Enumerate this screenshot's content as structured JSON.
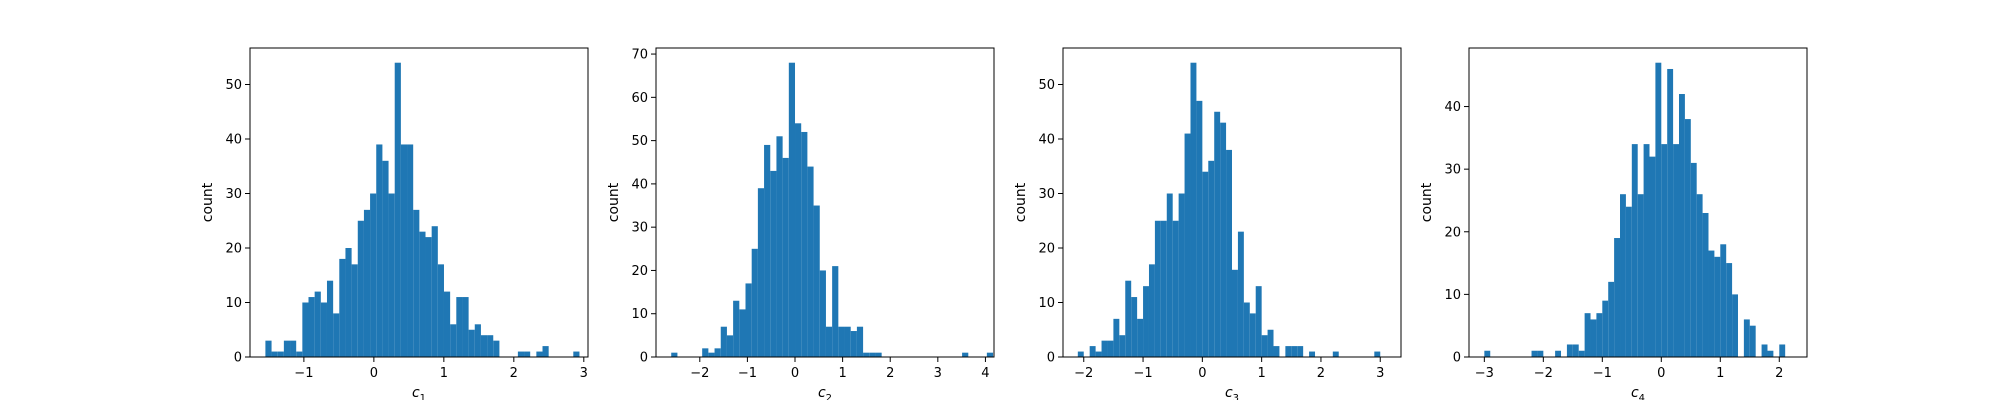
{
  "chart_data": [
    {
      "type": "bar",
      "title": "",
      "xlabel": "c",
      "xlabel_sub": "1",
      "ylabel": "count",
      "xlim": [
        -1.77,
        3.06
      ],
      "ylim": [
        0,
        56.7
      ],
      "xticks": [
        -1,
        0,
        1,
        2,
        3
      ],
      "yticks": [
        0,
        10,
        20,
        30,
        40,
        50
      ],
      "xtick_labels": [
        "−1",
        "0",
        "1",
        "2",
        "3"
      ],
      "ytick_labels": [
        "0",
        "10",
        "20",
        "30",
        "40",
        "50"
      ],
      "bins_start": -1.55,
      "bin_width": 0.088,
      "counts": [
        3,
        1,
        1,
        3,
        3,
        1,
        10,
        11,
        12,
        10,
        14,
        8,
        18,
        20,
        17,
        25,
        27,
        30,
        39,
        36,
        30,
        54,
        39,
        39,
        27,
        23,
        22,
        24,
        17,
        12,
        6,
        11,
        11,
        5,
        6,
        4,
        4,
        3,
        0,
        0,
        0,
        1,
        1,
        0,
        1,
        2,
        0,
        0,
        0,
        0,
        1
      ]
    },
    {
      "type": "bar",
      "title": "",
      "xlabel": "c",
      "xlabel_sub": "2",
      "ylabel": "count",
      "xlim": [
        -2.92,
        4.18
      ],
      "ylim": [
        0,
        71.4
      ],
      "xticks": [
        -2,
        -1,
        0,
        1,
        2,
        3,
        4
      ],
      "yticks": [
        0,
        10,
        20,
        30,
        40,
        50,
        60,
        70
      ],
      "xtick_labels": [
        "−2",
        "−1",
        "0",
        "1",
        "2",
        "3",
        "4"
      ],
      "ytick_labels": [
        "0",
        "10",
        "20",
        "30",
        "40",
        "50",
        "60",
        "70"
      ],
      "bins_start": -2.6,
      "bin_width": 0.13,
      "counts": [
        1,
        0,
        0,
        0,
        0,
        2,
        1,
        2,
        7,
        5,
        13,
        11,
        17,
        25,
        39,
        49,
        43,
        51,
        46,
        68,
        54,
        52,
        44,
        35,
        20,
        7,
        21,
        7,
        7,
        6,
        7,
        1,
        1,
        1,
        0,
        0,
        0,
        0,
        0,
        0,
        0,
        0,
        0,
        0,
        0,
        0,
        0,
        1,
        0,
        0,
        0,
        1
      ]
    },
    {
      "type": "bar",
      "title": "",
      "xlabel": "c",
      "xlabel_sub": "3",
      "ylabel": "count",
      "xlim": [
        -2.35,
        3.35
      ],
      "ylim": [
        0,
        56.7
      ],
      "xticks": [
        -2,
        -1,
        0,
        1,
        2,
        3
      ],
      "yticks": [
        0,
        10,
        20,
        30,
        40,
        50
      ],
      "xtick_labels": [
        "−2",
        "−1",
        "0",
        "1",
        "2",
        "3"
      ],
      "ytick_labels": [
        "0",
        "10",
        "20",
        "30",
        "40",
        "50"
      ],
      "bins_start": -2.1,
      "bin_width": 0.1,
      "counts": [
        1,
        0,
        2,
        1,
        3,
        3,
        7,
        4,
        14,
        11,
        7,
        13,
        17,
        25,
        25,
        30,
        25,
        30,
        41,
        54,
        47,
        34,
        36,
        45,
        43,
        38,
        16,
        23,
        10,
        8,
        13,
        4,
        5,
        2,
        0,
        2,
        2,
        2,
        0,
        1,
        0,
        0,
        0,
        1,
        0,
        0,
        0,
        0,
        0,
        0,
        1
      ]
    },
    {
      "type": "bar",
      "title": "",
      "xlabel": "c",
      "xlabel_sub": "4",
      "ylabel": "count",
      "xlim": [
        -3.26,
        2.47
      ],
      "ylim": [
        0,
        49.35
      ],
      "xticks": [
        -3,
        -2,
        -1,
        0,
        1,
        2
      ],
      "yticks": [
        0,
        10,
        20,
        30,
        40
      ],
      "xtick_labels": [
        "−3",
        "−2",
        "−1",
        "0",
        "1",
        "2"
      ],
      "ytick_labels": [
        "0",
        "10",
        "20",
        "30",
        "40"
      ],
      "bins_start": -3.0,
      "bin_width": 0.1,
      "counts": [
        1,
        0,
        0,
        0,
        0,
        0,
        0,
        0,
        1,
        1,
        0,
        0,
        1,
        0,
        2,
        2,
        1,
        7,
        6,
        7,
        9,
        12,
        19,
        26,
        24,
        34,
        26,
        34,
        32,
        47,
        34,
        46,
        34,
        42,
        38,
        31,
        26,
        23,
        17,
        16,
        18,
        15,
        10,
        0,
        6,
        5,
        0,
        2,
        1,
        0,
        2
      ]
    }
  ]
}
